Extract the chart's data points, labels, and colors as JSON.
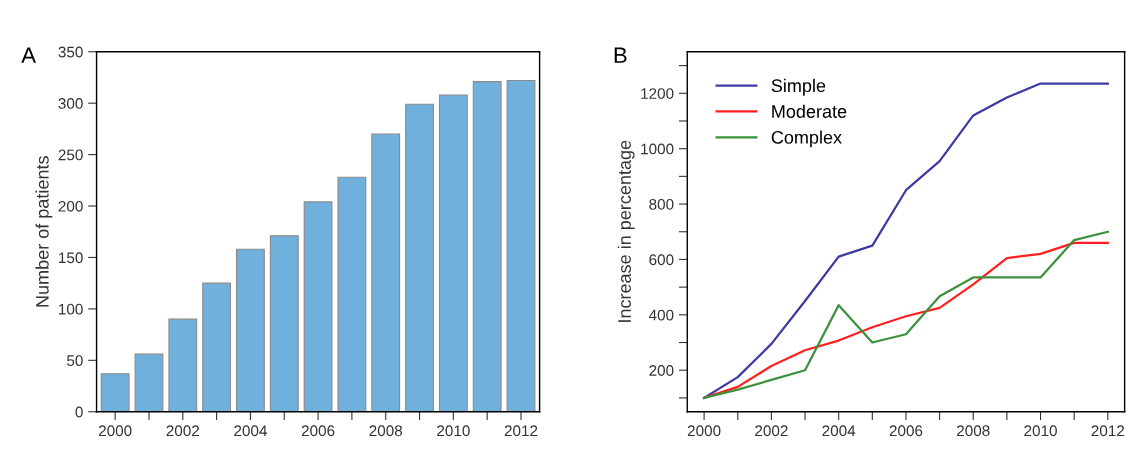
{
  "chart_data": [
    {
      "type": "bar",
      "title": "A",
      "ylabel": "Number of patients",
      "categories": [
        "2000",
        null,
        "2002",
        null,
        "2004",
        null,
        "2006",
        null,
        "2008",
        null,
        "2010",
        null,
        "2012"
      ],
      "values": [
        37,
        56,
        90,
        125,
        158,
        171,
        204,
        228,
        270,
        299,
        308,
        321,
        322
      ],
      "color": "#6fb0dd",
      "ylim": [
        0,
        350
      ],
      "yticks": [
        0,
        50,
        100,
        150,
        200,
        250,
        300,
        350
      ],
      "grid": false,
      "legend": false
    },
    {
      "type": "line",
      "title": "B",
      "ylabel": "Increase in percentage",
      "x": [
        2000,
        2001,
        2002,
        2003,
        2004,
        2005,
        2006,
        2007,
        2008,
        2009,
        2010,
        2011,
        2012
      ],
      "series": [
        {
          "name": "Simple",
          "color": "#3b3ba3",
          "values": [
            100,
            175,
            295,
            450,
            610,
            650,
            850,
            955,
            1120,
            1185,
            1235,
            1235,
            1235
          ]
        },
        {
          "name": "Moderate",
          "color": "#ff2020",
          "values": [
            100,
            140,
            215,
            272,
            307,
            355,
            395,
            425,
            510,
            605,
            620,
            660,
            660
          ]
        },
        {
          "name": "Complex",
          "color": "#3c923c",
          "values": [
            100,
            130,
            165,
            200,
            435,
            300,
            330,
            467,
            535,
            535,
            535,
            670,
            700
          ]
        }
      ],
      "xlim": [
        1999.5,
        2012.5
      ],
      "xticks": [
        2000,
        {
          "value": 2001,
          "label": null
        },
        2002,
        {
          "value": 2003,
          "label": null
        },
        2004,
        {
          "value": 2005,
          "label": null
        },
        2006,
        {
          "value": 2007,
          "label": null
        },
        2008,
        {
          "value": 2009,
          "label": null
        },
        2010,
        {
          "value": 2011,
          "label": null
        },
        2012
      ],
      "ylim": [
        50,
        1350
      ],
      "yticks": [
        {
          "value": 100,
          "label": null
        },
        200,
        {
          "value": 300,
          "label": null
        },
        400,
        {
          "value": 500,
          "label": null
        },
        600,
        {
          "value": 700,
          "label": null
        },
        800,
        {
          "value": 900,
          "label": null
        },
        1000,
        {
          "value": 1100,
          "label": null
        },
        1200,
        {
          "value": 1300,
          "label": null
        }
      ],
      "grid": false,
      "legend": "top left",
      "marker": "none",
      "line_style": "solid"
    }
  ]
}
